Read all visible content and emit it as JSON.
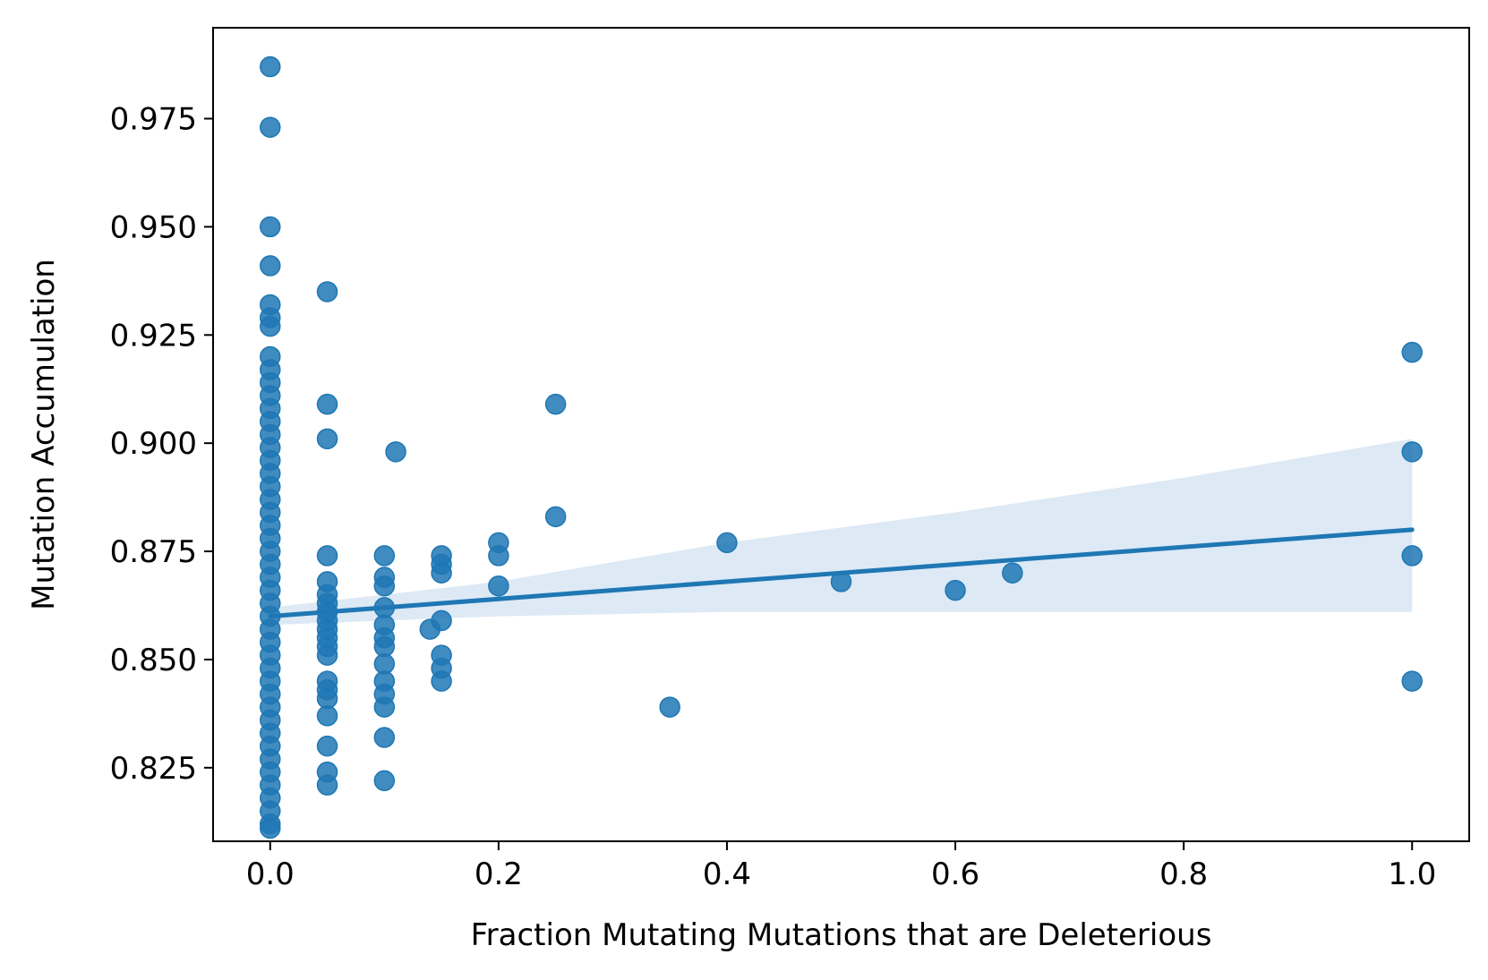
{
  "chart_data": {
    "type": "scatter",
    "title": "",
    "xlabel": "Fraction Mutating Mutations that are Deleterious",
    "ylabel": "Mutation Accumulation",
    "xlim": [
      -0.05,
      1.05
    ],
    "ylim": [
      0.808,
      0.996
    ],
    "x_ticks": [
      0.0,
      0.2,
      0.4,
      0.6,
      0.8,
      1.0
    ],
    "x_tick_labels": [
      "0.0",
      "0.2",
      "0.4",
      "0.6",
      "0.8",
      "1.0"
    ],
    "y_ticks": [
      0.825,
      0.85,
      0.875,
      0.9,
      0.925,
      0.95,
      0.975
    ],
    "y_tick_labels": [
      "0.825",
      "0.850",
      "0.875",
      "0.900",
      "0.925",
      "0.950",
      "0.975"
    ],
    "grid": false,
    "legend": "none",
    "colors": {
      "points": "#1f77b4",
      "line": "#1f77b4",
      "band": "#dde9f5"
    },
    "points": [
      {
        "x": 0.0,
        "y": 0.987
      },
      {
        "x": 0.0,
        "y": 0.973
      },
      {
        "x": 0.0,
        "y": 0.95
      },
      {
        "x": 0.0,
        "y": 0.941
      },
      {
        "x": 0.0,
        "y": 0.932
      },
      {
        "x": 0.0,
        "y": 0.929
      },
      {
        "x": 0.0,
        "y": 0.927
      },
      {
        "x": 0.0,
        "y": 0.92
      },
      {
        "x": 0.0,
        "y": 0.917
      },
      {
        "x": 0.0,
        "y": 0.914
      },
      {
        "x": 0.0,
        "y": 0.911
      },
      {
        "x": 0.0,
        "y": 0.908
      },
      {
        "x": 0.0,
        "y": 0.905
      },
      {
        "x": 0.0,
        "y": 0.902
      },
      {
        "x": 0.0,
        "y": 0.899
      },
      {
        "x": 0.0,
        "y": 0.896
      },
      {
        "x": 0.0,
        "y": 0.893
      },
      {
        "x": 0.0,
        "y": 0.89
      },
      {
        "x": 0.0,
        "y": 0.887
      },
      {
        "x": 0.0,
        "y": 0.884
      },
      {
        "x": 0.0,
        "y": 0.881
      },
      {
        "x": 0.0,
        "y": 0.878
      },
      {
        "x": 0.0,
        "y": 0.875
      },
      {
        "x": 0.0,
        "y": 0.872
      },
      {
        "x": 0.0,
        "y": 0.869
      },
      {
        "x": 0.0,
        "y": 0.866
      },
      {
        "x": 0.0,
        "y": 0.863
      },
      {
        "x": 0.0,
        "y": 0.86
      },
      {
        "x": 0.0,
        "y": 0.857
      },
      {
        "x": 0.0,
        "y": 0.854
      },
      {
        "x": 0.0,
        "y": 0.851
      },
      {
        "x": 0.0,
        "y": 0.848
      },
      {
        "x": 0.0,
        "y": 0.845
      },
      {
        "x": 0.0,
        "y": 0.842
      },
      {
        "x": 0.0,
        "y": 0.839
      },
      {
        "x": 0.0,
        "y": 0.836
      },
      {
        "x": 0.0,
        "y": 0.833
      },
      {
        "x": 0.0,
        "y": 0.83
      },
      {
        "x": 0.0,
        "y": 0.827
      },
      {
        "x": 0.0,
        "y": 0.824
      },
      {
        "x": 0.0,
        "y": 0.821
      },
      {
        "x": 0.0,
        "y": 0.818
      },
      {
        "x": 0.0,
        "y": 0.815
      },
      {
        "x": 0.0,
        "y": 0.812
      },
      {
        "x": 0.0,
        "y": 0.811
      },
      {
        "x": 0.05,
        "y": 0.935
      },
      {
        "x": 0.05,
        "y": 0.909
      },
      {
        "x": 0.05,
        "y": 0.901
      },
      {
        "x": 0.05,
        "y": 0.874
      },
      {
        "x": 0.05,
        "y": 0.868
      },
      {
        "x": 0.05,
        "y": 0.865
      },
      {
        "x": 0.05,
        "y": 0.863
      },
      {
        "x": 0.05,
        "y": 0.861
      },
      {
        "x": 0.05,
        "y": 0.859
      },
      {
        "x": 0.05,
        "y": 0.857
      },
      {
        "x": 0.05,
        "y": 0.855
      },
      {
        "x": 0.05,
        "y": 0.853
      },
      {
        "x": 0.05,
        "y": 0.851
      },
      {
        "x": 0.05,
        "y": 0.845
      },
      {
        "x": 0.05,
        "y": 0.843
      },
      {
        "x": 0.05,
        "y": 0.841
      },
      {
        "x": 0.05,
        "y": 0.837
      },
      {
        "x": 0.05,
        "y": 0.83
      },
      {
        "x": 0.05,
        "y": 0.824
      },
      {
        "x": 0.05,
        "y": 0.821
      },
      {
        "x": 0.1,
        "y": 0.874
      },
      {
        "x": 0.1,
        "y": 0.869
      },
      {
        "x": 0.1,
        "y": 0.867
      },
      {
        "x": 0.1,
        "y": 0.862
      },
      {
        "x": 0.1,
        "y": 0.858
      },
      {
        "x": 0.1,
        "y": 0.855
      },
      {
        "x": 0.1,
        "y": 0.853
      },
      {
        "x": 0.1,
        "y": 0.849
      },
      {
        "x": 0.1,
        "y": 0.845
      },
      {
        "x": 0.1,
        "y": 0.842
      },
      {
        "x": 0.1,
        "y": 0.839
      },
      {
        "x": 0.1,
        "y": 0.832
      },
      {
        "x": 0.1,
        "y": 0.822
      },
      {
        "x": 0.11,
        "y": 0.898
      },
      {
        "x": 0.14,
        "y": 0.857
      },
      {
        "x": 0.15,
        "y": 0.874
      },
      {
        "x": 0.15,
        "y": 0.872
      },
      {
        "x": 0.15,
        "y": 0.87
      },
      {
        "x": 0.15,
        "y": 0.859
      },
      {
        "x": 0.15,
        "y": 0.851
      },
      {
        "x": 0.15,
        "y": 0.848
      },
      {
        "x": 0.15,
        "y": 0.845
      },
      {
        "x": 0.2,
        "y": 0.877
      },
      {
        "x": 0.2,
        "y": 0.874
      },
      {
        "x": 0.2,
        "y": 0.867
      },
      {
        "x": 0.25,
        "y": 0.909
      },
      {
        "x": 0.25,
        "y": 0.883
      },
      {
        "x": 0.35,
        "y": 0.839
      },
      {
        "x": 0.4,
        "y": 0.877
      },
      {
        "x": 0.5,
        "y": 0.868
      },
      {
        "x": 0.6,
        "y": 0.866
      },
      {
        "x": 0.65,
        "y": 0.87
      },
      {
        "x": 1.0,
        "y": 0.921
      },
      {
        "x": 1.0,
        "y": 0.898
      },
      {
        "x": 1.0,
        "y": 0.874
      },
      {
        "x": 1.0,
        "y": 0.845
      }
    ],
    "regression": {
      "x": [
        0.0,
        1.0
      ],
      "y": [
        0.86,
        0.88
      ]
    },
    "confidence_band": {
      "x": [
        0.0,
        0.2,
        0.4,
        0.6,
        0.8,
        1.0
      ],
      "upper": [
        0.862,
        0.868,
        0.877,
        0.884,
        0.892,
        0.901
      ],
      "lower": [
        0.858,
        0.86,
        0.861,
        0.861,
        0.861,
        0.861
      ]
    }
  }
}
